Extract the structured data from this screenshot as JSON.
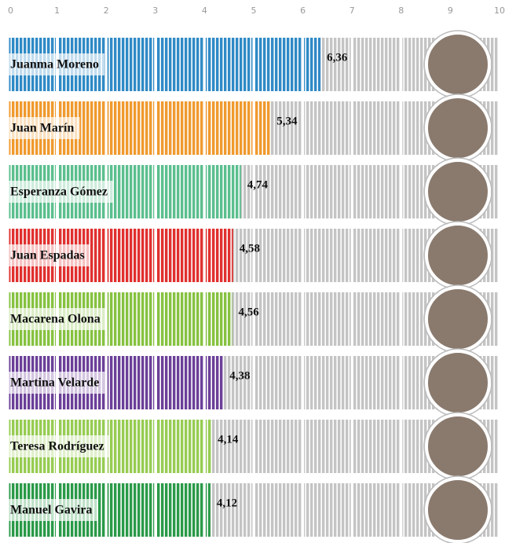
{
  "chart_data": {
    "type": "bar",
    "orientation": "horizontal",
    "categories": [
      "Juanma Moreno",
      "Juan Marín",
      "Esperanza Gómez",
      "Juan Espadas",
      "Macarena Olona",
      "Martina Velarde",
      "Teresa Rodríguez",
      "Manuel Gavira"
    ],
    "values": [
      6.36,
      5.34,
      4.74,
      4.58,
      4.56,
      4.38,
      4.14,
      4.12
    ],
    "value_labels": [
      "6,36",
      "5,34",
      "4,74",
      "4,58",
      "4,56",
      "4,38",
      "4,14",
      "4,12"
    ],
    "colors": [
      "#2f8ac6",
      "#f09a2e",
      "#5bbf8e",
      "#e0302f",
      "#86c240",
      "#6b3f98",
      "#97cc52",
      "#2a9a48"
    ],
    "xlim": [
      0,
      10
    ],
    "xticks": [
      0,
      1,
      2,
      3,
      4,
      5,
      6,
      7,
      8,
      9,
      10
    ]
  }
}
